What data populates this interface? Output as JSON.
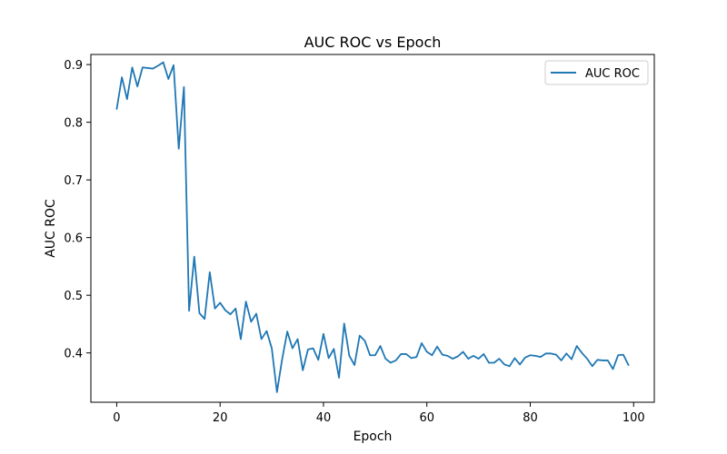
{
  "chart_data": {
    "type": "line",
    "title": "AUC ROC vs Epoch",
    "xlabel": "Epoch",
    "ylabel": "AUC ROC",
    "xlim": [
      -5,
      104
    ],
    "ylim": [
      0.3145,
      0.9175
    ],
    "xticks": [
      0,
      20,
      40,
      60,
      80,
      100
    ],
    "yticks": [
      0.4,
      0.5,
      0.6,
      0.7,
      0.8,
      0.9
    ],
    "xtick_labels": [
      "0",
      "20",
      "40",
      "60",
      "80",
      "100"
    ],
    "ytick_labels": [
      "0.4",
      "0.5",
      "0.6",
      "0.7",
      "0.8",
      "0.9"
    ],
    "grid": false,
    "legend": {
      "position": "top-right",
      "entries": [
        "AUC ROC"
      ]
    },
    "series": [
      {
        "name": "AUC ROC",
        "color": "#1f77b4",
        "x": [
          0,
          1,
          2,
          3,
          4,
          5,
          6,
          7,
          8,
          9,
          10,
          11,
          12,
          13,
          14,
          15,
          16,
          17,
          18,
          19,
          20,
          21,
          22,
          23,
          24,
          25,
          26,
          27,
          28,
          29,
          30,
          31,
          32,
          33,
          34,
          35,
          36,
          37,
          38,
          39,
          40,
          41,
          42,
          43,
          44,
          45,
          46,
          47,
          48,
          49,
          50,
          51,
          52,
          53,
          54,
          55,
          56,
          57,
          58,
          59,
          60,
          61,
          62,
          63,
          64,
          65,
          66,
          67,
          68,
          69,
          70,
          71,
          72,
          73,
          74,
          75,
          76,
          77,
          78,
          79,
          80,
          81,
          82,
          83,
          84,
          85,
          86,
          87,
          88,
          89,
          90,
          91,
          92,
          93,
          94,
          95,
          96,
          97,
          98,
          99
        ],
        "values": [
          0.823,
          0.878,
          0.84,
          0.895,
          0.862,
          0.895,
          0.894,
          0.893,
          0.898,
          0.904,
          0.875,
          0.899,
          0.754,
          0.861,
          0.473,
          0.567,
          0.469,
          0.459,
          0.54,
          0.477,
          0.487,
          0.474,
          0.467,
          0.477,
          0.424,
          0.489,
          0.454,
          0.468,
          0.424,
          0.438,
          0.408,
          0.332,
          0.389,
          0.437,
          0.408,
          0.424,
          0.37,
          0.406,
          0.408,
          0.388,
          0.433,
          0.391,
          0.407,
          0.357,
          0.451,
          0.395,
          0.379,
          0.43,
          0.421,
          0.396,
          0.396,
          0.412,
          0.39,
          0.383,
          0.387,
          0.398,
          0.398,
          0.391,
          0.393,
          0.417,
          0.402,
          0.396,
          0.411,
          0.397,
          0.395,
          0.39,
          0.394,
          0.402,
          0.39,
          0.395,
          0.39,
          0.398,
          0.383,
          0.383,
          0.39,
          0.38,
          0.377,
          0.391,
          0.38,
          0.392,
          0.396,
          0.395,
          0.393,
          0.399,
          0.399,
          0.397,
          0.387,
          0.399,
          0.389,
          0.412,
          0.4,
          0.39,
          0.377,
          0.388,
          0.387,
          0.387,
          0.372,
          0.396,
          0.397,
          0.379
        ]
      }
    ]
  }
}
